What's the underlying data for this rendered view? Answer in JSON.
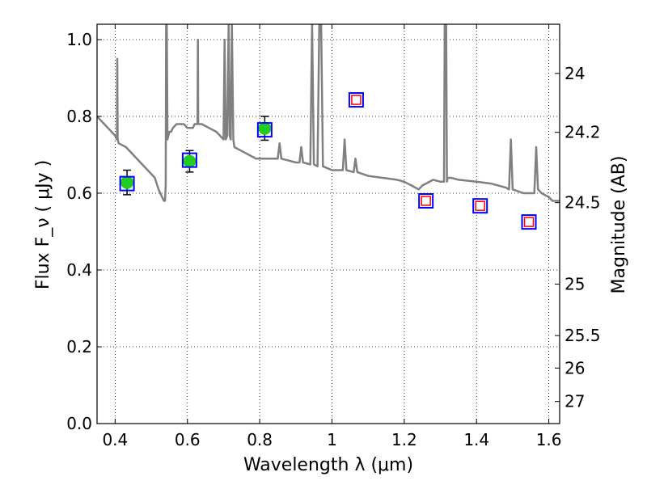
{
  "chart_data": {
    "type": "scatter",
    "xlabel": "Wavelength  λ (μm)",
    "ylabel": "Flux  F_ν  ( μJy )",
    "y2label": "Magnitude (AB)",
    "xlim": [
      0.35,
      1.63
    ],
    "ylim": [
      0.0,
      1.04
    ],
    "grid": true,
    "x_ticks": [
      0.4,
      0.6,
      0.8,
      1.0,
      1.2,
      1.4,
      1.6
    ],
    "x_tick_labels": [
      "0.4",
      "0.6",
      "0.8",
      "1",
      "1.2",
      "1.4",
      "1.6"
    ],
    "y_ticks": [
      0.0,
      0.2,
      0.4,
      0.6,
      0.8,
      1.0
    ],
    "y_tick_labels": [
      "0.0",
      "0.2",
      "0.4",
      "0.6",
      "0.8",
      "1.0"
    ],
    "magnitude_ticks": [
      "24",
      "24.2",
      "24.5",
      "25",
      "25.5",
      "26",
      "27"
    ],
    "series": [
      {
        "kind": "model_spectrum",
        "color": "#808080",
        "points": [
          [
            0.35,
            0.8
          ],
          [
            0.36,
            0.79
          ],
          [
            0.37,
            0.78
          ],
          [
            0.38,
            0.77
          ],
          [
            0.39,
            0.76
          ],
          [
            0.4,
            0.75
          ],
          [
            0.405,
            0.74
          ],
          [
            0.406,
            0.95
          ],
          [
            0.407,
            0.74
          ],
          [
            0.41,
            0.73
          ],
          [
            0.43,
            0.72
          ],
          [
            0.45,
            0.7
          ],
          [
            0.47,
            0.68
          ],
          [
            0.49,
            0.66
          ],
          [
            0.51,
            0.64
          ],
          [
            0.52,
            0.61
          ],
          [
            0.53,
            0.59
          ],
          [
            0.535,
            0.58
          ],
          [
            0.538,
            0.58
          ],
          [
            0.54,
            0.62
          ],
          [
            0.541,
            1.04
          ],
          [
            0.543,
            1.04
          ],
          [
            0.545,
            0.74
          ],
          [
            0.55,
            0.76
          ],
          [
            0.555,
            0.76
          ],
          [
            0.56,
            0.77
          ],
          [
            0.57,
            0.78
          ],
          [
            0.58,
            0.78
          ],
          [
            0.59,
            0.78
          ],
          [
            0.6,
            0.77
          ],
          [
            0.61,
            0.77
          ],
          [
            0.615,
            0.77
          ],
          [
            0.62,
            0.78
          ],
          [
            0.625,
            0.78
          ],
          [
            0.628,
            0.78
          ],
          [
            0.629,
            1.0
          ],
          [
            0.63,
            0.78
          ],
          [
            0.64,
            0.78
          ],
          [
            0.66,
            0.77
          ],
          [
            0.68,
            0.76
          ],
          [
            0.7,
            0.74
          ],
          [
            0.703,
            1.0
          ],
          [
            0.706,
            0.74
          ],
          [
            0.71,
            0.75
          ],
          [
            0.714,
            1.04
          ],
          [
            0.717,
            0.75
          ],
          [
            0.72,
            0.74
          ],
          [
            0.723,
            1.04
          ],
          [
            0.727,
            0.74
          ],
          [
            0.73,
            0.72
          ],
          [
            0.75,
            0.71
          ],
          [
            0.77,
            0.7
          ],
          [
            0.79,
            0.69
          ],
          [
            0.81,
            0.69
          ],
          [
            0.83,
            0.69
          ],
          [
            0.85,
            0.69
          ],
          [
            0.855,
            0.73
          ],
          [
            0.86,
            0.69
          ],
          [
            0.88,
            0.685
          ],
          [
            0.9,
            0.68
          ],
          [
            0.91,
            0.68
          ],
          [
            0.915,
            0.72
          ],
          [
            0.92,
            0.68
          ],
          [
            0.94,
            0.675
          ],
          [
            0.945,
            1.04
          ],
          [
            0.95,
            0.675
          ],
          [
            0.96,
            0.67
          ],
          [
            0.965,
            1.04
          ],
          [
            0.97,
            1.04
          ],
          [
            0.975,
            0.67
          ],
          [
            1.0,
            0.66
          ],
          [
            1.02,
            0.66
          ],
          [
            1.03,
            0.66
          ],
          [
            1.035,
            0.74
          ],
          [
            1.04,
            0.66
          ],
          [
            1.06,
            0.655
          ],
          [
            1.065,
            0.69
          ],
          [
            1.07,
            0.655
          ],
          [
            1.1,
            0.645
          ],
          [
            1.14,
            0.64
          ],
          [
            1.18,
            0.635
          ],
          [
            1.2,
            0.63
          ],
          [
            1.22,
            0.62
          ],
          [
            1.24,
            0.61
          ],
          [
            1.25,
            0.62
          ],
          [
            1.26,
            0.625
          ],
          [
            1.28,
            0.635
          ],
          [
            1.3,
            0.63
          ],
          [
            1.31,
            0.63
          ],
          [
            1.312,
            1.04
          ],
          [
            1.316,
            1.04
          ],
          [
            1.318,
            0.63
          ],
          [
            1.32,
            0.64
          ],
          [
            1.33,
            0.64
          ],
          [
            1.35,
            0.635
          ],
          [
            1.4,
            0.63
          ],
          [
            1.44,
            0.625
          ],
          [
            1.48,
            0.615
          ],
          [
            1.49,
            0.61
          ],
          [
            1.495,
            0.74
          ],
          [
            1.5,
            0.61
          ],
          [
            1.53,
            0.6
          ],
          [
            1.55,
            0.6
          ],
          [
            1.56,
            0.6
          ],
          [
            1.565,
            0.72
          ],
          [
            1.57,
            0.61
          ],
          [
            1.58,
            0.6
          ],
          [
            1.6,
            0.59
          ],
          [
            1.61,
            0.58
          ],
          [
            1.63,
            0.58
          ]
        ]
      },
      {
        "kind": "detected_photometry",
        "marker": "filled_circle",
        "color": "#22cc22",
        "points": [
          {
            "x": 0.433,
            "y": 0.628,
            "err": 0.032
          },
          {
            "x": 0.606,
            "y": 0.683,
            "err": 0.028
          },
          {
            "x": 0.814,
            "y": 0.769,
            "err": 0.031
          }
        ]
      },
      {
        "kind": "model_magnitude_boxes",
        "marker": "square",
        "color": "#0000ff",
        "points": [
          {
            "x": 0.433,
            "y": 0.625
          },
          {
            "x": 0.606,
            "y": 0.686
          },
          {
            "x": 0.814,
            "y": 0.765
          },
          {
            "x": 1.067,
            "y": 0.843
          },
          {
            "x": 1.26,
            "y": 0.58
          },
          {
            "x": 1.41,
            "y": 0.567
          },
          {
            "x": 1.545,
            "y": 0.525
          }
        ]
      },
      {
        "kind": "upper_limit_boxes",
        "marker": "square",
        "color": "#ff0000",
        "points": [
          {
            "x": 1.067,
            "y": 0.843
          },
          {
            "x": 1.26,
            "y": 0.58
          },
          {
            "x": 1.41,
            "y": 0.567
          },
          {
            "x": 1.545,
            "y": 0.525
          }
        ]
      }
    ]
  }
}
